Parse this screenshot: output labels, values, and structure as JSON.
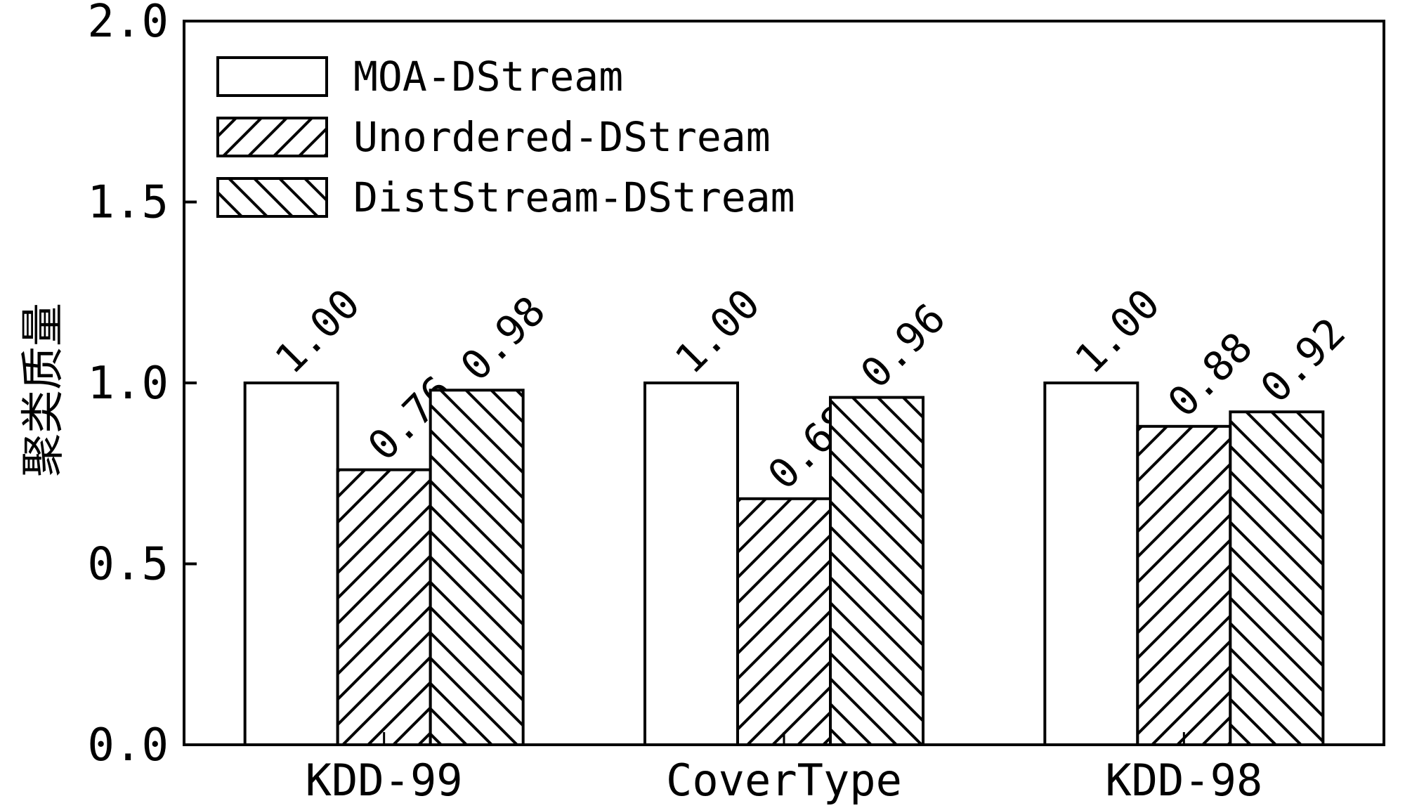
{
  "chart_data": {
    "type": "bar",
    "title": "",
    "xlabel": "",
    "ylabel": "聚类质量",
    "ylim": [
      0,
      2.0
    ],
    "yticks": [
      "0.0",
      "0.5",
      "1.0",
      "1.5",
      "2.0"
    ],
    "ytick_values": [
      0,
      0.5,
      1.0,
      1.5,
      2.0
    ],
    "categories": [
      "KDD-99",
      "CoverType",
      "KDD-98"
    ],
    "legend_position": "top-left",
    "grid": false,
    "series": [
      {
        "name": "MOA-DStream",
        "pattern": "none",
        "values": [
          1.0,
          1.0,
          1.0
        ],
        "labels": [
          "1.00",
          "1.00",
          "1.00"
        ]
      },
      {
        "name": "Unordered-DStream",
        "pattern": "forward-hatch",
        "values": [
          0.76,
          0.68,
          0.88
        ],
        "labels": [
          "0.76",
          "0.68",
          "0.88"
        ]
      },
      {
        "name": "DistStream-DStream",
        "pattern": "back-hatch",
        "values": [
          0.98,
          0.96,
          0.92
        ],
        "labels": [
          "0.98",
          "0.96",
          "0.92"
        ]
      }
    ]
  }
}
